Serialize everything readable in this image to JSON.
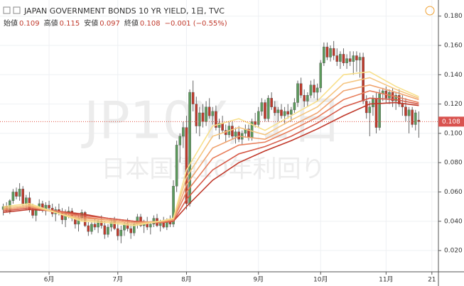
{
  "chart_data": {
    "type": "candlestick",
    "title": "JAPAN GOVERNMENT BONDS 10 YR YIELD, 1日, TVC",
    "ohlc_labels": [
      "始値",
      "高値",
      "安値",
      "終値"
    ],
    "change_label": "−0.001 (−0.55%)",
    "watermark": "JP10Y, 1日",
    "watermark_sub": "日本国債10年利回り",
    "up_color": "#5b9a5b",
    "down_color": "#c0392b",
    "grid": true,
    "xlim": [
      -1,
      133
    ],
    "xticks": [
      {
        "value": 14,
        "label": "6月"
      },
      {
        "value": 35,
        "label": "7月"
      },
      {
        "value": 56,
        "label": "8月"
      },
      {
        "value": 78,
        "label": "9月"
      },
      {
        "value": 97,
        "label": "10月"
      },
      {
        "value": 117,
        "label": "11月"
      },
      {
        "value": 131,
        "label": "21"
      }
    ],
    "ylim": [
      0.0055,
      0.191
    ],
    "yticks": [
      0.02,
      0.04,
      0.06,
      0.08,
      0.1,
      0.12,
      0.14,
      0.16,
      0.18
    ],
    "ytick_labels": [
      "0.020",
      "0.040",
      "0.060",
      "0.080",
      "0.100",
      "0.120",
      "0.140",
      "0.160",
      "0.180"
    ],
    "ohlc": [
      [
        0.048,
        0.052,
        0.044,
        0.05
      ],
      [
        0.05,
        0.053,
        0.046,
        0.047
      ],
      [
        0.047,
        0.055,
        0.045,
        0.054
      ],
      [
        0.054,
        0.062,
        0.052,
        0.06
      ],
      [
        0.06,
        0.063,
        0.055,
        0.057
      ],
      [
        0.057,
        0.066,
        0.054,
        0.062
      ],
      [
        0.062,
        0.064,
        0.05,
        0.052
      ],
      [
        0.052,
        0.058,
        0.048,
        0.056
      ],
      [
        0.056,
        0.06,
        0.046,
        0.048
      ],
      [
        0.048,
        0.052,
        0.042,
        0.044
      ],
      [
        0.044,
        0.05,
        0.04,
        0.049
      ],
      [
        0.049,
        0.055,
        0.047,
        0.052
      ],
      [
        0.052,
        0.054,
        0.046,
        0.048
      ],
      [
        0.048,
        0.053,
        0.044,
        0.051
      ],
      [
        0.051,
        0.054,
        0.047,
        0.049
      ],
      [
        0.049,
        0.052,
        0.043,
        0.045
      ],
      [
        0.045,
        0.05,
        0.04,
        0.048
      ],
      [
        0.048,
        0.052,
        0.044,
        0.046
      ],
      [
        0.046,
        0.049,
        0.038,
        0.041
      ],
      [
        0.041,
        0.048,
        0.036,
        0.045
      ],
      [
        0.045,
        0.05,
        0.042,
        0.047
      ],
      [
        0.047,
        0.049,
        0.04,
        0.042
      ],
      [
        0.042,
        0.046,
        0.035,
        0.038
      ],
      [
        0.038,
        0.044,
        0.033,
        0.042
      ],
      [
        0.042,
        0.048,
        0.04,
        0.046
      ],
      [
        0.046,
        0.047,
        0.036,
        0.037
      ],
      [
        0.037,
        0.04,
        0.03,
        0.033
      ],
      [
        0.033,
        0.04,
        0.031,
        0.038
      ],
      [
        0.038,
        0.042,
        0.034,
        0.036
      ],
      [
        0.036,
        0.041,
        0.032,
        0.04
      ],
      [
        0.04,
        0.044,
        0.035,
        0.037
      ],
      [
        0.037,
        0.04,
        0.028,
        0.031
      ],
      [
        0.031,
        0.038,
        0.029,
        0.036
      ],
      [
        0.036,
        0.042,
        0.033,
        0.04
      ],
      [
        0.04,
        0.043,
        0.034,
        0.035
      ],
      [
        0.035,
        0.039,
        0.027,
        0.03
      ],
      [
        0.03,
        0.037,
        0.025,
        0.034
      ],
      [
        0.034,
        0.04,
        0.03,
        0.038
      ],
      [
        0.038,
        0.042,
        0.033,
        0.035
      ],
      [
        0.035,
        0.038,
        0.028,
        0.032
      ],
      [
        0.032,
        0.04,
        0.03,
        0.038
      ],
      [
        0.038,
        0.045,
        0.035,
        0.043
      ],
      [
        0.043,
        0.045,
        0.036,
        0.037
      ],
      [
        0.037,
        0.041,
        0.032,
        0.039
      ],
      [
        0.039,
        0.043,
        0.034,
        0.036
      ],
      [
        0.036,
        0.04,
        0.031,
        0.038
      ],
      [
        0.038,
        0.044,
        0.036,
        0.042
      ],
      [
        0.042,
        0.045,
        0.036,
        0.037
      ],
      [
        0.037,
        0.041,
        0.033,
        0.04
      ],
      [
        0.04,
        0.043,
        0.035,
        0.036
      ],
      [
        0.036,
        0.042,
        0.034,
        0.041
      ],
      [
        0.041,
        0.044,
        0.036,
        0.038
      ],
      [
        0.038,
        0.068,
        0.036,
        0.064
      ],
      [
        0.064,
        0.095,
        0.06,
        0.092
      ],
      [
        0.092,
        0.1,
        0.08,
        0.098
      ],
      [
        0.098,
        0.108,
        0.09,
        0.104
      ],
      [
        0.104,
        0.112,
        0.048,
        0.052
      ],
      [
        0.052,
        0.13,
        0.05,
        0.128
      ],
      [
        0.128,
        0.136,
        0.115,
        0.12
      ],
      [
        0.12,
        0.125,
        0.1,
        0.105
      ],
      [
        0.105,
        0.118,
        0.098,
        0.114
      ],
      [
        0.114,
        0.12,
        0.104,
        0.108
      ],
      [
        0.108,
        0.122,
        0.105,
        0.118
      ],
      [
        0.118,
        0.124,
        0.11,
        0.112
      ],
      [
        0.112,
        0.118,
        0.106,
        0.115
      ],
      [
        0.115,
        0.119,
        0.102,
        0.104
      ],
      [
        0.104,
        0.11,
        0.096,
        0.107
      ],
      [
        0.107,
        0.112,
        0.1,
        0.102
      ],
      [
        0.102,
        0.106,
        0.094,
        0.099
      ],
      [
        0.099,
        0.108,
        0.097,
        0.105
      ],
      [
        0.105,
        0.108,
        0.096,
        0.098
      ],
      [
        0.098,
        0.104,
        0.093,
        0.101
      ],
      [
        0.101,
        0.105,
        0.094,
        0.096
      ],
      [
        0.096,
        0.102,
        0.092,
        0.1
      ],
      [
        0.1,
        0.106,
        0.097,
        0.103
      ],
      [
        0.103,
        0.106,
        0.095,
        0.097
      ],
      [
        0.097,
        0.11,
        0.095,
        0.108
      ],
      [
        0.108,
        0.114,
        0.104,
        0.106
      ],
      [
        0.106,
        0.118,
        0.104,
        0.115
      ],
      [
        0.115,
        0.124,
        0.112,
        0.121
      ],
      [
        0.121,
        0.123,
        0.108,
        0.11
      ],
      [
        0.11,
        0.126,
        0.108,
        0.124
      ],
      [
        0.124,
        0.128,
        0.116,
        0.118
      ],
      [
        0.118,
        0.122,
        0.112,
        0.114
      ],
      [
        0.114,
        0.118,
        0.108,
        0.116
      ],
      [
        0.116,
        0.12,
        0.11,
        0.112
      ],
      [
        0.112,
        0.118,
        0.106,
        0.115
      ],
      [
        0.115,
        0.12,
        0.11,
        0.113
      ],
      [
        0.113,
        0.118,
        0.108,
        0.116
      ],
      [
        0.116,
        0.124,
        0.114,
        0.121
      ],
      [
        0.121,
        0.136,
        0.118,
        0.134
      ],
      [
        0.134,
        0.138,
        0.124,
        0.126
      ],
      [
        0.126,
        0.13,
        0.118,
        0.122
      ],
      [
        0.122,
        0.128,
        0.118,
        0.126
      ],
      [
        0.126,
        0.136,
        0.124,
        0.133
      ],
      [
        0.133,
        0.137,
        0.124,
        0.128
      ],
      [
        0.128,
        0.134,
        0.122,
        0.131
      ],
      [
        0.131,
        0.15,
        0.128,
        0.148
      ],
      [
        0.148,
        0.162,
        0.146,
        0.159
      ],
      [
        0.159,
        0.162,
        0.15,
        0.152
      ],
      [
        0.152,
        0.16,
        0.149,
        0.158
      ],
      [
        0.158,
        0.163,
        0.15,
        0.153
      ],
      [
        0.153,
        0.158,
        0.146,
        0.149
      ],
      [
        0.149,
        0.156,
        0.144,
        0.154
      ],
      [
        0.154,
        0.158,
        0.146,
        0.148
      ],
      [
        0.148,
        0.154,
        0.144,
        0.151
      ],
      [
        0.151,
        0.156,
        0.146,
        0.149
      ],
      [
        0.149,
        0.156,
        0.14,
        0.153
      ],
      [
        0.153,
        0.156,
        0.142,
        0.15
      ],
      [
        0.15,
        0.155,
        0.138,
        0.152
      ],
      [
        0.152,
        0.155,
        0.12,
        0.122
      ],
      [
        0.122,
        0.126,
        0.11,
        0.114
      ],
      [
        0.114,
        0.122,
        0.098,
        0.118
      ],
      [
        0.118,
        0.126,
        0.112,
        0.124
      ],
      [
        0.124,
        0.128,
        0.1,
        0.104
      ],
      [
        0.104,
        0.13,
        0.102,
        0.127
      ],
      [
        0.127,
        0.131,
        0.122,
        0.129
      ],
      [
        0.129,
        0.132,
        0.121,
        0.124
      ],
      [
        0.124,
        0.13,
        0.12,
        0.128
      ],
      [
        0.128,
        0.131,
        0.118,
        0.122
      ],
      [
        0.122,
        0.128,
        0.116,
        0.126
      ],
      [
        0.126,
        0.13,
        0.118,
        0.12
      ],
      [
        0.12,
        0.126,
        0.112,
        0.118
      ],
      [
        0.118,
        0.124,
        0.108,
        0.112
      ],
      [
        0.112,
        0.118,
        0.1,
        0.116
      ],
      [
        0.116,
        0.118,
        0.104,
        0.106
      ],
      [
        0.106,
        0.116,
        0.102,
        0.114
      ],
      [
        0.109,
        0.115,
        0.097,
        0.108
      ]
    ],
    "ribbon": {
      "x": [
        0,
        8,
        16,
        24,
        32,
        40,
        48,
        52,
        56,
        64,
        72,
        80,
        88,
        96,
        104,
        112,
        120,
        127
      ],
      "series": [
        {
          "color": "#c0392b",
          "values": [
            0.046,
            0.048,
            0.047,
            0.045,
            0.042,
            0.04,
            0.039,
            0.04,
            0.05,
            0.068,
            0.08,
            0.088,
            0.095,
            0.103,
            0.112,
            0.12,
            0.121,
            0.119
          ]
        },
        {
          "color": "#d65a48",
          "values": [
            0.047,
            0.049,
            0.047,
            0.044,
            0.042,
            0.04,
            0.039,
            0.04,
            0.055,
            0.075,
            0.086,
            0.091,
            0.098,
            0.107,
            0.118,
            0.124,
            0.123,
            0.12
          ]
        },
        {
          "color": "#e87f5c",
          "values": [
            0.048,
            0.05,
            0.047,
            0.043,
            0.041,
            0.039,
            0.039,
            0.041,
            0.06,
            0.083,
            0.092,
            0.094,
            0.102,
            0.111,
            0.123,
            0.129,
            0.125,
            0.121
          ]
        },
        {
          "color": "#f0a36f",
          "values": [
            0.048,
            0.05,
            0.046,
            0.042,
            0.041,
            0.039,
            0.04,
            0.041,
            0.065,
            0.09,
            0.098,
            0.096,
            0.105,
            0.114,
            0.129,
            0.133,
            0.128,
            0.123
          ]
        },
        {
          "color": "#f5c57f",
          "values": [
            0.049,
            0.051,
            0.046,
            0.041,
            0.04,
            0.038,
            0.04,
            0.042,
            0.07,
            0.098,
            0.104,
            0.099,
            0.109,
            0.118,
            0.134,
            0.138,
            0.13,
            0.124
          ]
        },
        {
          "color": "#f8e08c",
          "values": [
            0.05,
            0.052,
            0.046,
            0.04,
            0.039,
            0.037,
            0.04,
            0.042,
            0.075,
            0.105,
            0.11,
            0.102,
            0.112,
            0.122,
            0.14,
            0.142,
            0.132,
            0.125
          ]
        }
      ]
    }
  }
}
